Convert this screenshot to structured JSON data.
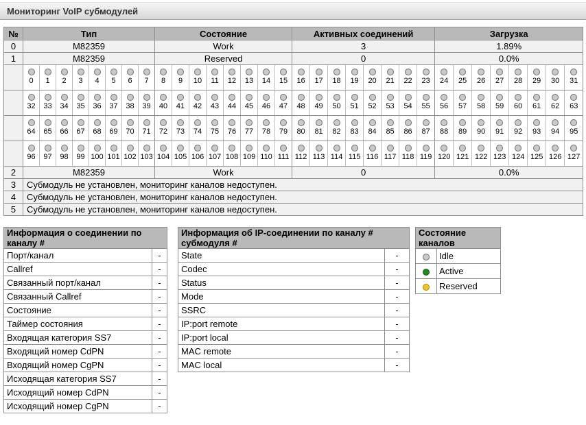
{
  "title": "Мониторинг VoIP субмодулей",
  "main_table": {
    "columns": [
      "№",
      "Тип",
      "Состояние",
      "Активных соединений",
      "Загрузка"
    ],
    "submodules": [
      {
        "num": "0",
        "type": "M82359",
        "state": "Work",
        "active": "3",
        "load": "1.89%"
      },
      {
        "num": "1",
        "type": "M82359",
        "state": "Reserved",
        "active": "0",
        "load": "0.0%"
      },
      {
        "num": "2",
        "type": "M82359",
        "state": "Work",
        "active": "0",
        "load": "0.0%"
      },
      {
        "num": "3",
        "message": "Субмодуль не установлен, мониторинг каналов недоступен."
      },
      {
        "num": "4",
        "message": "Субмодуль не установлен, мониторинг каналов недоступен."
      },
      {
        "num": "5",
        "message": "Субмодуль не установлен, мониторинг каналов недоступен."
      }
    ],
    "row_order": [
      "sub:0",
      "sub:1",
      "grid",
      "sub:2",
      "sub:3",
      "sub:4",
      "sub:5"
    ],
    "channel_grid": {
      "first": 0,
      "last": 127,
      "channels_per_row": 32,
      "channels_per_group": 8,
      "default_state": "idle",
      "state_overrides": {}
    }
  },
  "connection_info": {
    "title": "Информация о соединении по каналу #",
    "rows": [
      {
        "label": "Порт/канал",
        "value": "-"
      },
      {
        "label": "Callref",
        "value": "-"
      },
      {
        "label": "Связанный порт/канал",
        "value": "-"
      },
      {
        "label": "Связанный Callref",
        "value": "-"
      },
      {
        "label": "Состояние",
        "value": "-"
      },
      {
        "label": "Таймер состояния",
        "value": "-"
      },
      {
        "label": "Входящая категория SS7",
        "value": "-"
      },
      {
        "label": "Входящий номер CdPN",
        "value": "-"
      },
      {
        "label": "Входящий номер CgPN",
        "value": "-"
      },
      {
        "label": "Исходящая категория SS7",
        "value": "-"
      },
      {
        "label": "Исходящий номер CdPN",
        "value": "-"
      },
      {
        "label": "Исходящий номер CgPN",
        "value": "-"
      }
    ]
  },
  "ip_info": {
    "title": "Информация об IP-соединении по каналу # субмодуля #",
    "rows": [
      {
        "label": "State",
        "value": "-"
      },
      {
        "label": "Codec",
        "value": "-"
      },
      {
        "label": "Status",
        "value": "-"
      },
      {
        "label": "Mode",
        "value": "-"
      },
      {
        "label": "SSRC",
        "value": "-"
      },
      {
        "label": "IP:port remote",
        "value": "-"
      },
      {
        "label": "IP:port local",
        "value": "-"
      },
      {
        "label": "MAC remote",
        "value": "-"
      },
      {
        "label": "MAC local",
        "value": "-"
      }
    ]
  },
  "legend": {
    "title": "Состояние каналов",
    "items": [
      {
        "label": "Idle",
        "state": "idle",
        "color": "#c9c9c9",
        "border": "#6e6e6e"
      },
      {
        "label": "Active",
        "state": "active",
        "color": "#1f8b1f",
        "border": "#145c14"
      },
      {
        "label": "Reserved",
        "state": "reserved",
        "color": "#f2c51d",
        "border": "#b48a00"
      }
    ]
  }
}
